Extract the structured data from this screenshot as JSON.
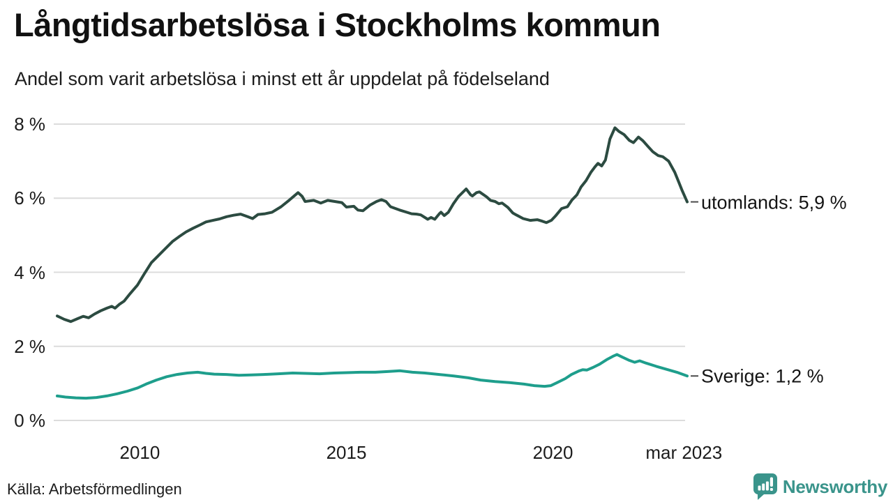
{
  "header": {
    "title": "Långtidsarbetslösa i Stockholms kommun",
    "subtitle": "Andel som varit arbetslösa i minst ett år uppdelat på födelseland"
  },
  "footer": {
    "source": "Källa: Arbetsförmedlingen",
    "brand": "Newsworthy"
  },
  "colors": {
    "utomlands": "#2c4b41",
    "sverige": "#1e9e8c",
    "grid": "#dcdcdc",
    "text": "#1c1c1c",
    "connector": "#4a4a4a",
    "brand_teal": "#3a948b"
  },
  "chart_data": {
    "type": "line",
    "title": "Långtidsarbetslösa i Stockholms kommun",
    "subtitle": "Andel som varit arbetslösa i minst ett år uppdelat på födelseland",
    "xlabel": "",
    "ylabel": "",
    "xlim": [
      2008.0,
      2023.25
    ],
    "ylim": [
      0,
      8
    ],
    "grid": "horizontal",
    "legend_position": "right-end-labels",
    "x_ticks": [
      {
        "value": 2010,
        "label": "2010"
      },
      {
        "value": 2015,
        "label": "2015"
      },
      {
        "value": 2020,
        "label": "2020"
      },
      {
        "value": 2023.17,
        "label": "mar 2023"
      }
    ],
    "y_ticks": [
      {
        "value": 8,
        "label": "8 %"
      },
      {
        "value": 6,
        "label": "6 %"
      },
      {
        "value": 4,
        "label": "4 %"
      },
      {
        "value": 2,
        "label": "2 %"
      },
      {
        "value": 0,
        "label": "0 %"
      }
    ],
    "series": [
      {
        "name": "utomlands",
        "end_label": "utomlands: 5,9 %",
        "end_value": 5.9,
        "color_key": "utomlands",
        "points": [
          [
            2008.0,
            2.82
          ],
          [
            2008.17,
            2.73
          ],
          [
            2008.33,
            2.67
          ],
          [
            2008.5,
            2.75
          ],
          [
            2008.63,
            2.81
          ],
          [
            2008.76,
            2.77
          ],
          [
            2008.9,
            2.87
          ],
          [
            2009.05,
            2.96
          ],
          [
            2009.2,
            3.03
          ],
          [
            2009.32,
            3.08
          ],
          [
            2009.4,
            3.03
          ],
          [
            2009.5,
            3.13
          ],
          [
            2009.62,
            3.22
          ],
          [
            2009.77,
            3.43
          ],
          [
            2009.94,
            3.65
          ],
          [
            2010.11,
            3.96
          ],
          [
            2010.28,
            4.26
          ],
          [
            2010.45,
            4.45
          ],
          [
            2010.62,
            4.64
          ],
          [
            2010.79,
            4.83
          ],
          [
            2010.96,
            4.97
          ],
          [
            2011.12,
            5.09
          ],
          [
            2011.29,
            5.19
          ],
          [
            2011.46,
            5.28
          ],
          [
            2011.6,
            5.36
          ],
          [
            2011.77,
            5.4
          ],
          [
            2011.93,
            5.44
          ],
          [
            2012.1,
            5.5
          ],
          [
            2012.27,
            5.54
          ],
          [
            2012.44,
            5.57
          ],
          [
            2012.61,
            5.5
          ],
          [
            2012.73,
            5.45
          ],
          [
            2012.86,
            5.56
          ],
          [
            2013.03,
            5.58
          ],
          [
            2013.2,
            5.62
          ],
          [
            2013.42,
            5.77
          ],
          [
            2013.62,
            5.95
          ],
          [
            2013.83,
            6.15
          ],
          [
            2013.93,
            6.05
          ],
          [
            2014.0,
            5.91
          ],
          [
            2014.21,
            5.94
          ],
          [
            2014.38,
            5.87
          ],
          [
            2014.55,
            5.94
          ],
          [
            2014.72,
            5.91
          ],
          [
            2014.89,
            5.88
          ],
          [
            2015.0,
            5.76
          ],
          [
            2015.18,
            5.78
          ],
          [
            2015.28,
            5.68
          ],
          [
            2015.4,
            5.66
          ],
          [
            2015.57,
            5.81
          ],
          [
            2015.73,
            5.91
          ],
          [
            2015.85,
            5.96
          ],
          [
            2015.96,
            5.91
          ],
          [
            2016.07,
            5.77
          ],
          [
            2016.19,
            5.72
          ],
          [
            2016.29,
            5.68
          ],
          [
            2016.46,
            5.62
          ],
          [
            2016.58,
            5.58
          ],
          [
            2016.7,
            5.57
          ],
          [
            2016.8,
            5.55
          ],
          [
            2016.97,
            5.43
          ],
          [
            2017.05,
            5.48
          ],
          [
            2017.14,
            5.43
          ],
          [
            2017.25,
            5.58
          ],
          [
            2017.29,
            5.62
          ],
          [
            2017.37,
            5.53
          ],
          [
            2017.47,
            5.62
          ],
          [
            2017.59,
            5.85
          ],
          [
            2017.71,
            6.04
          ],
          [
            2017.9,
            6.25
          ],
          [
            2018.01,
            6.09
          ],
          [
            2018.05,
            6.06
          ],
          [
            2018.15,
            6.15
          ],
          [
            2018.22,
            6.17
          ],
          [
            2018.39,
            6.04
          ],
          [
            2018.49,
            5.94
          ],
          [
            2018.6,
            5.91
          ],
          [
            2018.69,
            5.85
          ],
          [
            2018.77,
            5.87
          ],
          [
            2018.91,
            5.75
          ],
          [
            2019.03,
            5.6
          ],
          [
            2019.11,
            5.55
          ],
          [
            2019.28,
            5.45
          ],
          [
            2019.45,
            5.4
          ],
          [
            2019.62,
            5.42
          ],
          [
            2019.74,
            5.38
          ],
          [
            2019.84,
            5.34
          ],
          [
            2019.96,
            5.4
          ],
          [
            2020.07,
            5.53
          ],
          [
            2020.21,
            5.72
          ],
          [
            2020.35,
            5.77
          ],
          [
            2020.46,
            5.95
          ],
          [
            2020.58,
            6.09
          ],
          [
            2020.68,
            6.3
          ],
          [
            2020.8,
            6.47
          ],
          [
            2020.92,
            6.7
          ],
          [
            2021.02,
            6.85
          ],
          [
            2021.09,
            6.94
          ],
          [
            2021.18,
            6.87
          ],
          [
            2021.27,
            7.03
          ],
          [
            2021.38,
            7.6
          ],
          [
            2021.5,
            7.9
          ],
          [
            2021.6,
            7.8
          ],
          [
            2021.72,
            7.72
          ],
          [
            2021.85,
            7.56
          ],
          [
            2021.95,
            7.5
          ],
          [
            2022.07,
            7.65
          ],
          [
            2022.18,
            7.55
          ],
          [
            2022.3,
            7.4
          ],
          [
            2022.42,
            7.25
          ],
          [
            2022.55,
            7.15
          ],
          [
            2022.66,
            7.12
          ],
          [
            2022.8,
            7.0
          ],
          [
            2022.95,
            6.7
          ],
          [
            2023.05,
            6.42
          ],
          [
            2023.13,
            6.2
          ],
          [
            2023.25,
            5.9
          ]
        ]
      },
      {
        "name": "Sverige",
        "end_label": "Sverige: 1,2 %",
        "end_value": 1.2,
        "color_key": "sverige",
        "points": [
          [
            2008.0,
            0.66
          ],
          [
            2008.2,
            0.63
          ],
          [
            2008.45,
            0.61
          ],
          [
            2008.7,
            0.6
          ],
          [
            2008.95,
            0.62
          ],
          [
            2009.2,
            0.66
          ],
          [
            2009.45,
            0.72
          ],
          [
            2009.7,
            0.79
          ],
          [
            2009.95,
            0.88
          ],
          [
            2010.15,
            0.98
          ],
          [
            2010.4,
            1.09
          ],
          [
            2010.65,
            1.18
          ],
          [
            2010.9,
            1.24
          ],
          [
            2011.15,
            1.28
          ],
          [
            2011.4,
            1.3
          ],
          [
            2011.6,
            1.27
          ],
          [
            2011.8,
            1.25
          ],
          [
            2012.1,
            1.24
          ],
          [
            2012.4,
            1.22
          ],
          [
            2012.7,
            1.23
          ],
          [
            2013.0,
            1.24
          ],
          [
            2013.35,
            1.26
          ],
          [
            2013.7,
            1.28
          ],
          [
            2014.0,
            1.27
          ],
          [
            2014.35,
            1.26
          ],
          [
            2014.7,
            1.28
          ],
          [
            2015.0,
            1.29
          ],
          [
            2015.35,
            1.3
          ],
          [
            2015.7,
            1.3
          ],
          [
            2016.0,
            1.32
          ],
          [
            2016.3,
            1.34
          ],
          [
            2016.6,
            1.3
          ],
          [
            2016.9,
            1.28
          ],
          [
            2017.25,
            1.24
          ],
          [
            2017.6,
            1.2
          ],
          [
            2017.95,
            1.15
          ],
          [
            2018.25,
            1.09
          ],
          [
            2018.6,
            1.05
          ],
          [
            2018.95,
            1.02
          ],
          [
            2019.3,
            0.98
          ],
          [
            2019.55,
            0.94
          ],
          [
            2019.8,
            0.92
          ],
          [
            2019.95,
            0.94
          ],
          [
            2020.1,
            1.02
          ],
          [
            2020.3,
            1.13
          ],
          [
            2020.45,
            1.24
          ],
          [
            2020.62,
            1.33
          ],
          [
            2020.72,
            1.37
          ],
          [
            2020.82,
            1.36
          ],
          [
            2020.97,
            1.43
          ],
          [
            2021.13,
            1.52
          ],
          [
            2021.3,
            1.64
          ],
          [
            2021.45,
            1.73
          ],
          [
            2021.55,
            1.78
          ],
          [
            2021.68,
            1.71
          ],
          [
            2021.85,
            1.62
          ],
          [
            2021.98,
            1.57
          ],
          [
            2022.1,
            1.61
          ],
          [
            2022.25,
            1.55
          ],
          [
            2022.5,
            1.46
          ],
          [
            2022.75,
            1.38
          ],
          [
            2023.0,
            1.3
          ],
          [
            2023.25,
            1.2
          ]
        ]
      }
    ]
  }
}
